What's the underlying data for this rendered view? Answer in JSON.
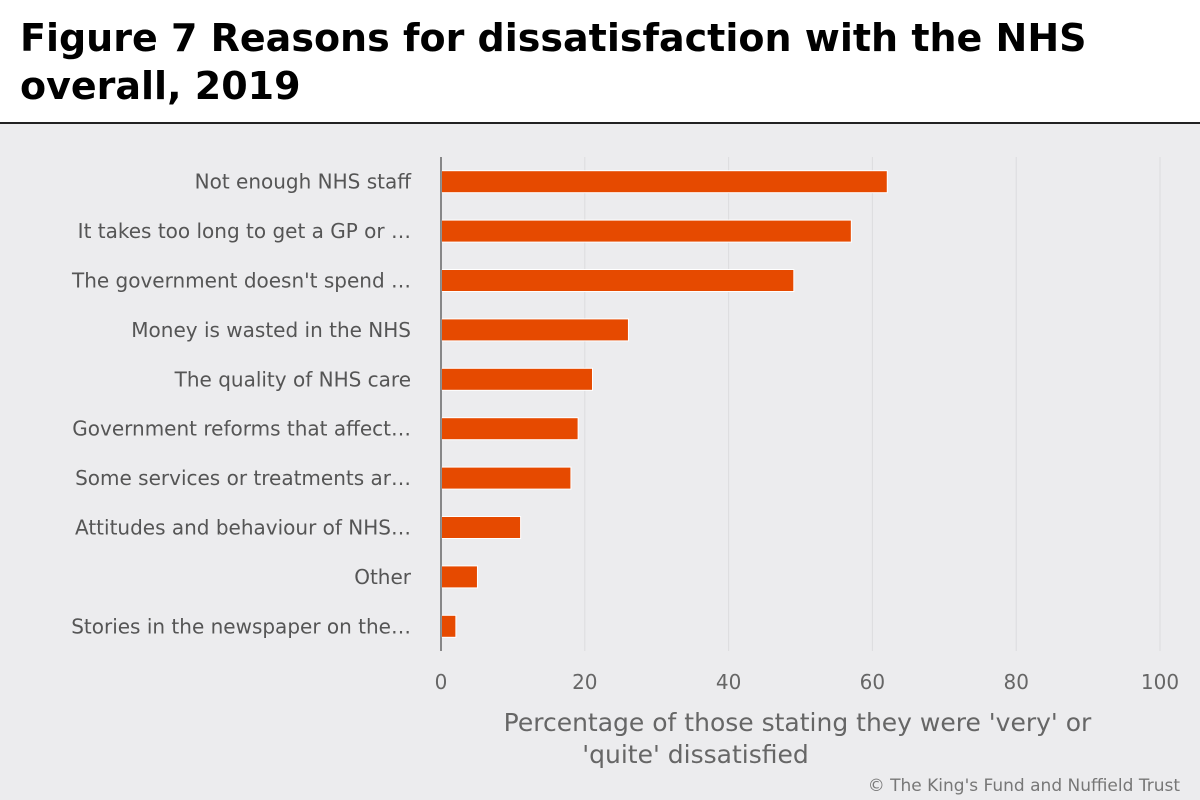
{
  "title": "Figure 7 Reasons for dissatisfaction with the NHS overall, 2019",
  "credit": "© The King's Fund and Nuffield Trust",
  "colors": {
    "bar": "#e64a00",
    "background": "#ececee",
    "grid": "#dcdcde",
    "axis": "#222222"
  },
  "chart_data": {
    "type": "bar",
    "orientation": "horizontal",
    "categories": [
      "Not enough NHS staff",
      "It takes too long to get a GP or …",
      "The government doesn't spend …",
      "Money is wasted in the NHS",
      "The quality of NHS care",
      "Government reforms that affect…",
      "Some services or treatments ar…",
      "Attitudes and behaviour of NHS…",
      "Other",
      "Stories in the newspaper on the…"
    ],
    "values": [
      62,
      57,
      49,
      26,
      21,
      19,
      18,
      11,
      5,
      2
    ],
    "xlabel": "Percentage of those stating they were 'very' or 'quite' dissatisfied",
    "xlim": [
      0,
      100
    ],
    "xticks": [
      0,
      20,
      40,
      60,
      80,
      100
    ],
    "grid": true,
    "legend": false
  }
}
